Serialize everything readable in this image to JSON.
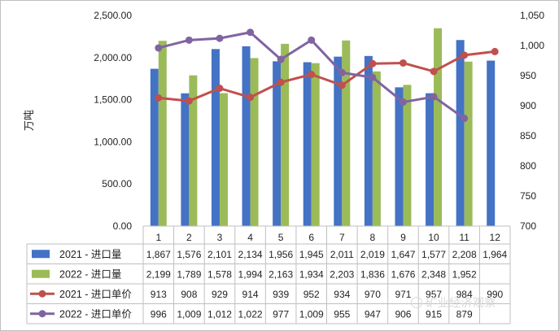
{
  "chart_data": {
    "type": "bar",
    "categories": [
      "1",
      "2",
      "3",
      "4",
      "5",
      "6",
      "7",
      "8",
      "9",
      "10",
      "11",
      "12"
    ],
    "ylabel": "万吨",
    "ylim": [
      0,
      2500
    ],
    "y2lim": [
      700,
      1050
    ],
    "yticks": [
      "0.00",
      "500.00",
      "1,000.00",
      "1,500.00",
      "2,000.00",
      "2,500.00"
    ],
    "y2ticks": [
      "700",
      "750",
      "800",
      "850",
      "900",
      "950",
      "1,000",
      "1,050"
    ],
    "series": [
      {
        "name": "2021 - 进口量",
        "kind": "bar",
        "axis": "left",
        "color": "#4472C4",
        "values": [
          1867,
          1576,
          2101,
          2134,
          1956,
          1945,
          2011,
          2019,
          1647,
          1577,
          2208,
          1964
        ],
        "labels": [
          "1,867",
          "1,576",
          "2,101",
          "2,134",
          "1,956",
          "1,945",
          "2,011",
          "2,019",
          "1,647",
          "1,577",
          "2,208",
          "1,964"
        ]
      },
      {
        "name": "2022 - 进口量",
        "kind": "bar",
        "axis": "left",
        "color": "#9BBB59",
        "values": [
          2199,
          1789,
          1578,
          1994,
          2163,
          1934,
          2203,
          1836,
          1676,
          2348,
          1952,
          null
        ],
        "labels": [
          "2,199",
          "1,789",
          "1,578",
          "1,994",
          "2,163",
          "1,934",
          "2,203",
          "1,836",
          "1,676",
          "2,348",
          "1,952",
          ""
        ]
      },
      {
        "name": "2021 - 进口单价",
        "kind": "line",
        "axis": "right",
        "color": "#C0504D",
        "values": [
          913,
          908,
          929,
          914,
          939,
          952,
          934,
          970,
          971,
          957,
          984,
          990
        ],
        "labels": [
          "913",
          "908",
          "929",
          "914",
          "939",
          "952",
          "934",
          "970",
          "971",
          "957",
          "984",
          "990"
        ]
      },
      {
        "name": "2022 - 进口单价",
        "kind": "line",
        "axis": "right",
        "color": "#8064A2",
        "values": [
          996,
          1009,
          1012,
          1022,
          977,
          1009,
          955,
          947,
          906,
          915,
          879,
          null
        ],
        "labels": [
          "996",
          "1,009",
          "1,012",
          "1,022",
          "977",
          "1,009",
          "955",
          "947",
          "906",
          "915",
          "879",
          ""
        ]
      }
    ],
    "grid": false,
    "legend": "data-table"
  },
  "watermark": "矿业经济观察"
}
